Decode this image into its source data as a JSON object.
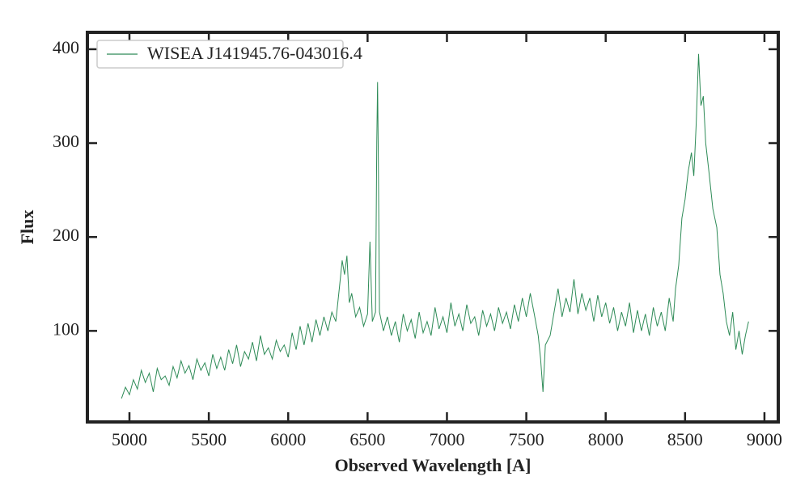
{
  "chart_data": {
    "type": "line",
    "xlabel": "Observed Wavelength [A]",
    "ylabel": "Flux",
    "x": [
      4950,
      4975,
      5000,
      5025,
      5050,
      5075,
      5100,
      5125,
      5150,
      5175,
      5200,
      5225,
      5250,
      5275,
      5300,
      5325,
      5350,
      5375,
      5400,
      5425,
      5450,
      5475,
      5500,
      5525,
      5550,
      5575,
      5600,
      5625,
      5650,
      5675,
      5700,
      5725,
      5750,
      5775,
      5800,
      5825,
      5850,
      5875,
      5900,
      5925,
      5950,
      5975,
      6000,
      6025,
      6050,
      6075,
      6100,
      6125,
      6150,
      6175,
      6200,
      6225,
      6250,
      6275,
      6300,
      6325,
      6340,
      6355,
      6370,
      6385,
      6400,
      6425,
      6450,
      6475,
      6500,
      6515,
      6530,
      6550,
      6558,
      6563,
      6568,
      6575,
      6600,
      6625,
      6650,
      6675,
      6700,
      6725,
      6750,
      6775,
      6800,
      6825,
      6850,
      6875,
      6900,
      6925,
      6950,
      6975,
      7000,
      7025,
      7050,
      7075,
      7100,
      7125,
      7150,
      7175,
      7200,
      7225,
      7250,
      7275,
      7300,
      7325,
      7350,
      7375,
      7400,
      7425,
      7450,
      7475,
      7500,
      7525,
      7550,
      7575,
      7590,
      7605,
      7620,
      7650,
      7675,
      7700,
      7725,
      7750,
      7775,
      7800,
      7825,
      7850,
      7875,
      7900,
      7925,
      7950,
      7975,
      8000,
      8025,
      8050,
      8075,
      8100,
      8125,
      8150,
      8175,
      8200,
      8225,
      8250,
      8275,
      8300,
      8325,
      8350,
      8375,
      8400,
      8425,
      8440,
      8460,
      8480,
      8500,
      8520,
      8540,
      8555,
      8570,
      8585,
      8600,
      8615,
      8630,
      8650,
      8675,
      8700,
      8720,
      8740,
      8760,
      8780,
      8800,
      8820,
      8840,
      8860,
      8880,
      8900
    ],
    "series": [
      {
        "name": "WISEA J141945.76-043016.4",
        "color": "#2e8b57",
        "values": [
          28,
          40,
          32,
          48,
          38,
          58,
          45,
          55,
          35,
          60,
          48,
          52,
          42,
          62,
          50,
          68,
          55,
          63,
          48,
          70,
          58,
          66,
          52,
          75,
          60,
          72,
          58,
          80,
          65,
          85,
          62,
          78,
          70,
          88,
          68,
          95,
          75,
          82,
          70,
          90,
          78,
          85,
          72,
          98,
          80,
          105,
          85,
          108,
          88,
          112,
          95,
          115,
          100,
          120,
          110,
          150,
          175,
          160,
          180,
          130,
          140,
          115,
          125,
          105,
          118,
          195,
          110,
          120,
          300,
          365,
          280,
          120,
          100,
          115,
          95,
          110,
          88,
          118,
          100,
          112,
          92,
          120,
          98,
          110,
          95,
          125,
          102,
          115,
          98,
          130,
          105,
          118,
          100,
          128,
          108,
          115,
          95,
          122,
          105,
          118,
          100,
          125,
          108,
          120,
          102,
          128,
          110,
          135,
          115,
          140,
          118,
          95,
          70,
          35,
          85,
          95,
          120,
          145,
          115,
          135,
          120,
          155,
          118,
          140,
          122,
          135,
          110,
          138,
          115,
          130,
          108,
          125,
          100,
          120,
          105,
          130,
          98,
          122,
          100,
          118,
          95,
          125,
          105,
          120,
          100,
          135,
          110,
          145,
          170,
          220,
          240,
          270,
          290,
          265,
          320,
          395,
          340,
          350,
          300,
          270,
          230,
          210,
          160,
          140,
          110,
          95,
          120,
          80,
          100,
          75,
          95,
          110
        ]
      }
    ],
    "xlim": [
      4735,
      9087
    ],
    "ylim": [
      3,
      418
    ],
    "xticks": [
      5000,
      5500,
      6000,
      6500,
      7000,
      7500,
      8000,
      8500,
      9000
    ],
    "yticks": [
      100,
      200,
      300,
      400
    ],
    "legend": "upper left"
  }
}
